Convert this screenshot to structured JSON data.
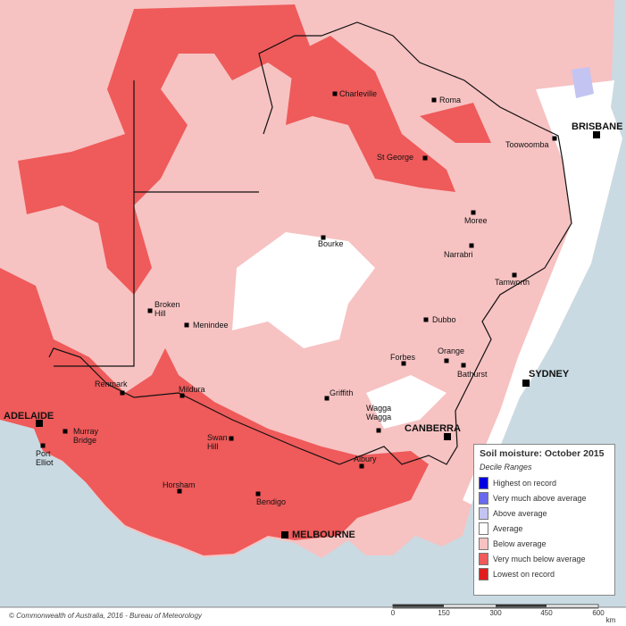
{
  "legend": {
    "title": "Soil moisture: October 2015",
    "subtitle": "Decile Ranges",
    "items": [
      {
        "label": "Highest on record",
        "color": "#0000e0"
      },
      {
        "label": "Very much above average",
        "color": "#6a6aee"
      },
      {
        "label": "Above average",
        "color": "#c4c4f2"
      },
      {
        "label": "Average",
        "color": "#ffffff"
      },
      {
        "label": "Below average",
        "color": "#f7c2c2"
      },
      {
        "label": "Very much below average",
        "color": "#ef5a5a"
      },
      {
        "label": "Lowest on record",
        "color": "#e01e1e"
      }
    ]
  },
  "places": [
    "Charleville",
    "Roma",
    "BRISBANE",
    "Toowoomba",
    "St George",
    "Moree",
    "Bourke",
    "Narrabri",
    "Tamworth",
    "Broken Hill",
    "Menindee",
    "Dubbo",
    "Orange",
    "Forbes",
    "Bathurst",
    "SYDNEY",
    "Renmark",
    "Mildura",
    "Griffith",
    "Wagga Wagga",
    "CANBERRA",
    "ADELAIDE",
    "Murray Bridge",
    "Port Elliot",
    "Swan Hill",
    "Albury",
    "Horsham",
    "Bendigo",
    "MELBOURNE"
  ],
  "scale": {
    "ticks": [
      "0",
      "150",
      "300",
      "450",
      "600"
    ],
    "unit": "km"
  },
  "credit": "© Commonwealth of Australia, 2016 - Bureau of Meteorology"
}
